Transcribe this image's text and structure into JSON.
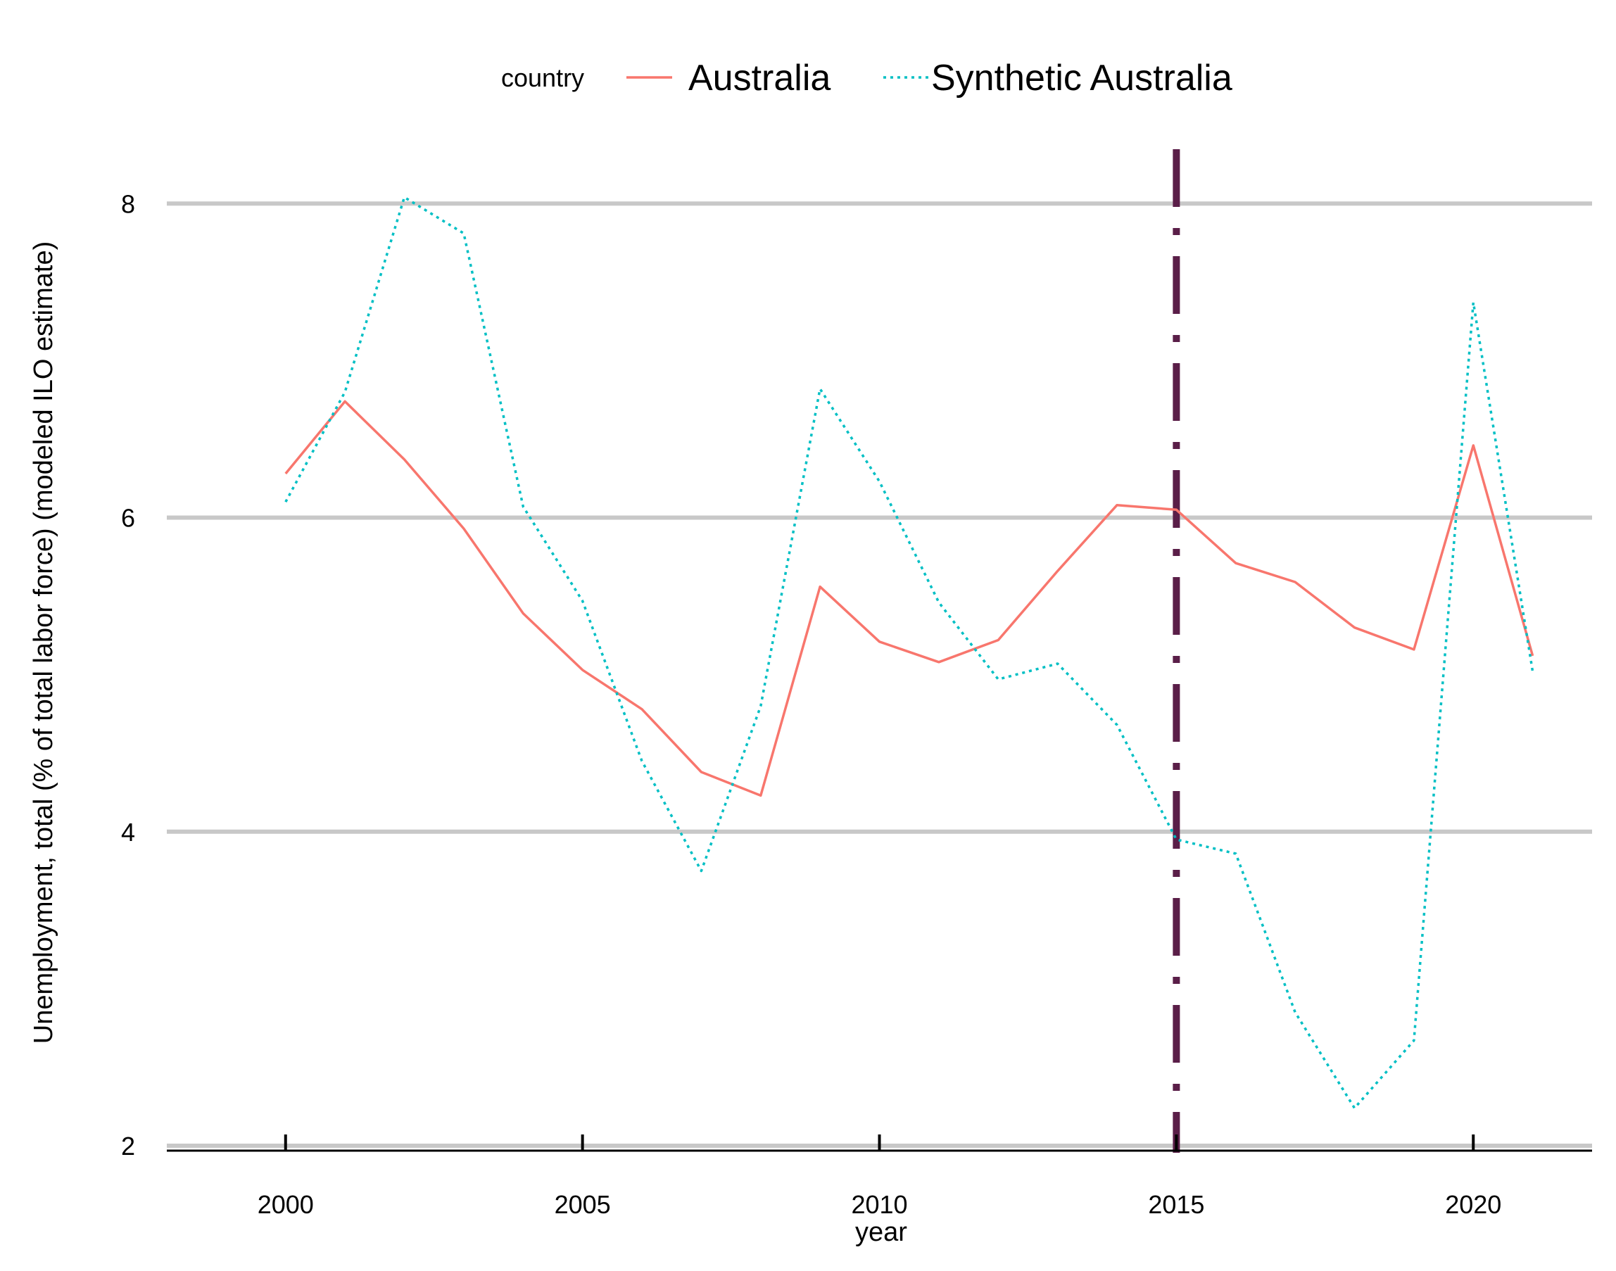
{
  "chart_data": {
    "type": "line",
    "xlabel": "year",
    "ylabel": "Unemployment, total (% of total labor force) (modeled ILO estimate)",
    "xlim": [
      1998,
      2022
    ],
    "ylim": [
      2,
      8.4
    ],
    "x_ticks": [
      2000,
      2005,
      2010,
      2015,
      2020
    ],
    "y_ticks": [
      2,
      4,
      6,
      8
    ],
    "grid": "horizontal major",
    "legend": {
      "title": "country",
      "position": "top",
      "items": [
        "Australia",
        "Synthetic Australia"
      ]
    },
    "x": [
      2000,
      2001,
      2002,
      2003,
      2004,
      2005,
      2006,
      2007,
      2008,
      2009,
      2010,
      2011,
      2012,
      2013,
      2014,
      2015,
      2016,
      2017,
      2018,
      2019,
      2020,
      2021
    ],
    "series": [
      {
        "name": "Australia",
        "color": "#F8766D",
        "style": "solid",
        "values": [
          6.28,
          6.74,
          6.37,
          5.93,
          5.39,
          5.03,
          4.78,
          4.38,
          4.23,
          5.56,
          5.21,
          5.08,
          5.22,
          5.66,
          6.08,
          6.05,
          5.71,
          5.59,
          5.3,
          5.16,
          6.46,
          5.12
        ]
      },
      {
        "name": "Synthetic Australia",
        "color": "#00BFC4",
        "style": "dotted",
        "values": [
          6.1,
          6.8,
          8.04,
          7.81,
          6.07,
          5.47,
          4.45,
          3.75,
          4.8,
          6.82,
          6.23,
          5.46,
          4.97,
          5.07,
          4.68,
          3.95,
          3.86,
          2.85,
          2.24,
          2.67,
          7.37,
          5.02
        ]
      }
    ],
    "vline": {
      "x": 2015,
      "color": "#5A1E48",
      "style": "dashdot"
    }
  }
}
